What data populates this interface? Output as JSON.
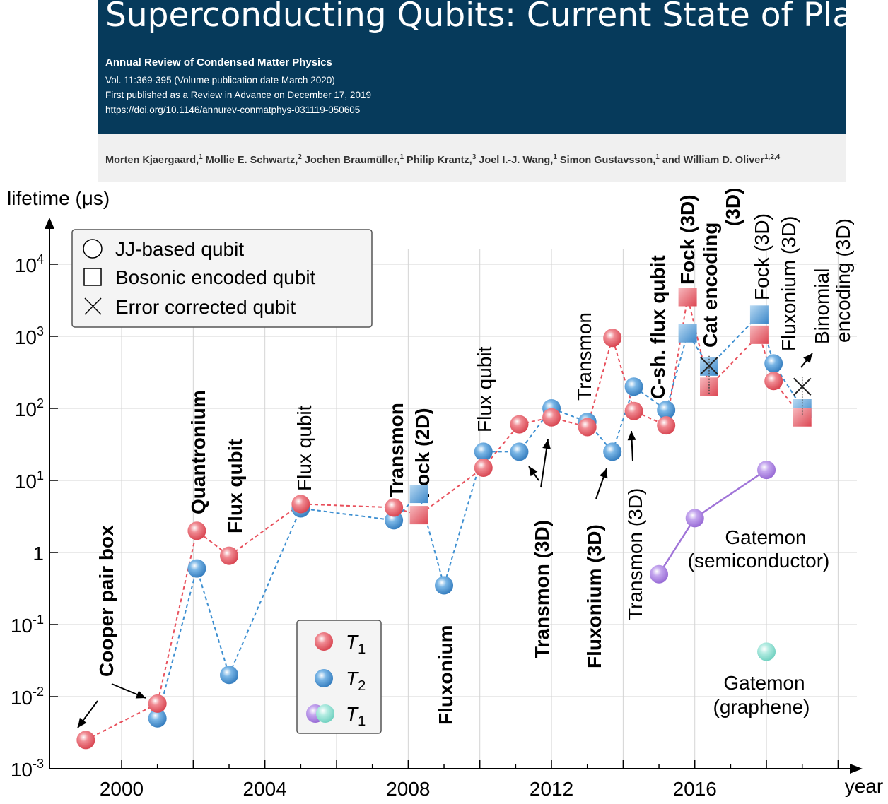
{
  "header": {
    "title": "Superconducting Qubits: Current State of Play",
    "journal": "Annual Review of Condensed Matter Physics",
    "volume": "Vol. 11:369-395 (Volume publication date March 2020)",
    "published": "First published as a Review in Advance on December 17, 2019",
    "doi": "https://doi.org/10.1146/annurev-conmatphys-031119-050605",
    "authors": [
      {
        "name": "Morten Kjaergaard,",
        "sup": "1"
      },
      {
        "name": "Mollie E. Schwartz,",
        "sup": "2"
      },
      {
        "name": "Jochen Braumüller,",
        "sup": "1"
      },
      {
        "name": "Philip Krantz,",
        "sup": "3"
      },
      {
        "name": "Joel I.-J. Wang,",
        "sup": "1"
      },
      {
        "name": "Simon Gustavsson,",
        "sup": "1"
      },
      {
        "name": "and William D. Oliver",
        "sup": "1,2,4"
      }
    ]
  },
  "colors": {
    "banner": "#063a5b",
    "t1": "#e8505c",
    "t2": "#3d8fd1",
    "gatemon_semiconductor": "#a074d8",
    "gatemon_graphene": "#7fd8c8"
  },
  "chart_data": {
    "type": "scatter",
    "xlabel": "year",
    "ylabel": "lifetime (μs)",
    "y_scale": "log",
    "xlim": [
      1998,
      2020.5
    ],
    "ylim": [
      0.001,
      100000
    ],
    "x_ticks": [
      "2000",
      "2004",
      "2008",
      "2012",
      "2016"
    ],
    "y_ticks": [
      {
        "exp": -3,
        "base": "10",
        "sup": "-3"
      },
      {
        "exp": -2,
        "base": "10",
        "sup": "-2"
      },
      {
        "exp": -1,
        "base": "10",
        "sup": "-1"
      },
      {
        "exp": 0,
        "base": "1",
        "sup": ""
      },
      {
        "exp": 1,
        "base": "10",
        "sup": "1"
      },
      {
        "exp": 2,
        "base": "10",
        "sup": "2"
      },
      {
        "exp": 3,
        "base": "10",
        "sup": "3"
      },
      {
        "exp": 4,
        "base": "10",
        "sup": "4"
      }
    ],
    "grid": true,
    "series": [
      {
        "name": "T1",
        "connected": true,
        "points": [
          {
            "x": 1999.0,
            "y": 0.0025,
            "m": "circle"
          },
          {
            "x": 2001.0,
            "y": 0.008,
            "m": "circle"
          },
          {
            "x": 2002.1,
            "y": 2.0,
            "m": "circle"
          },
          {
            "x": 2003.0,
            "y": 0.9,
            "m": "circle"
          },
          {
            "x": 2005.0,
            "y": 4.7,
            "m": "circle"
          },
          {
            "x": 2007.6,
            "y": 4.2,
            "m": "circle"
          },
          {
            "x": 2008.3,
            "y": 3.3,
            "m": "square"
          },
          {
            "x": 2010.1,
            "y": 15,
            "m": "circle"
          },
          {
            "x": 2011.1,
            "y": 60,
            "m": "circle"
          },
          {
            "x": 2012.0,
            "y": 75,
            "m": "circle"
          },
          {
            "x": 2013.0,
            "y": 55,
            "m": "circle"
          },
          {
            "x": 2013.7,
            "y": 950,
            "m": "circle"
          },
          {
            "x": 2014.3,
            "y": 92,
            "m": "circle"
          },
          {
            "x": 2015.2,
            "y": 58,
            "m": "circle"
          },
          {
            "x": 2015.8,
            "y": 3500,
            "m": "square"
          },
          {
            "x": 2016.4,
            "y": 200,
            "m": "square"
          },
          {
            "x": 2017.8,
            "y": 1050,
            "m": "square"
          },
          {
            "x": 2018.2,
            "y": 240,
            "m": "circle"
          },
          {
            "x": 2019.0,
            "y": 75,
            "m": "square"
          }
        ]
      },
      {
        "name": "T2",
        "connected": true,
        "points": [
          {
            "x": 2001.0,
            "y": 0.005,
            "m": "circle"
          },
          {
            "x": 2002.1,
            "y": 0.6,
            "m": "circle"
          },
          {
            "x": 2003.0,
            "y": 0.02,
            "m": "circle"
          },
          {
            "x": 2005.0,
            "y": 4.1,
            "m": "circle"
          },
          {
            "x": 2007.6,
            "y": 2.8,
            "m": "circle"
          },
          {
            "x": 2008.3,
            "y": 6.5,
            "m": "square"
          },
          {
            "x": 2009.0,
            "y": 0.35,
            "m": "circle"
          },
          {
            "x": 2010.1,
            "y": 25,
            "m": "circle"
          },
          {
            "x": 2011.1,
            "y": 25,
            "m": "circle"
          },
          {
            "x": 2012.0,
            "y": 100,
            "m": "circle"
          },
          {
            "x": 2013.0,
            "y": 65,
            "m": "circle"
          },
          {
            "x": 2013.7,
            "y": 25,
            "m": "circle"
          },
          {
            "x": 2014.3,
            "y": 200,
            "m": "circle"
          },
          {
            "x": 2015.2,
            "y": 95,
            "m": "circle"
          },
          {
            "x": 2015.8,
            "y": 1100,
            "m": "square"
          },
          {
            "x": 2016.4,
            "y": 380,
            "m": "square"
          },
          {
            "x": 2017.8,
            "y": 2000,
            "m": "square"
          },
          {
            "x": 2018.2,
            "y": 420,
            "m": "circle"
          },
          {
            "x": 2019.0,
            "y": 100,
            "m": "square"
          }
        ]
      },
      {
        "name": "T1",
        "connected": true,
        "points": [
          {
            "x": 2015.0,
            "y": 0.5,
            "m": "circle"
          },
          {
            "x": 2016.0,
            "y": 3.0,
            "m": "circle"
          },
          {
            "x": 2018.0,
            "y": 14,
            "m": "circle"
          }
        ]
      },
      {
        "name": "T1",
        "connected": false,
        "points": [
          {
            "x": 2018.0,
            "y": 0.042,
            "m": "circle"
          }
        ]
      }
    ],
    "error_corrected": [
      {
        "x": 2016.4,
        "y": 390
      },
      {
        "x": 2019.0,
        "y": 200
      }
    ],
    "marker_legend": {
      "placement": "top-left",
      "items": [
        "JJ-based qubit",
        "Bosonic encoded qubit",
        "Error corrected qubit"
      ]
    },
    "series_legend": {
      "placement": "bottom-center",
      "items": [
        "T1",
        "T2",
        "T1"
      ]
    },
    "annotations": [
      {
        "text": "Cooper pair box",
        "bold": true
      },
      {
        "text": "Quantronium",
        "bold": true
      },
      {
        "text": "Flux qubit",
        "bold": true
      },
      {
        "text": "Flux qubit",
        "bold": false
      },
      {
        "text": "Transmon",
        "bold": true
      },
      {
        "text": "Fock (2D)",
        "bold": true
      },
      {
        "text": "Fluxonium",
        "bold": true
      },
      {
        "text": "Flux qubit",
        "bold": false
      },
      {
        "text": "Transmon (3D)",
        "bold": true
      },
      {
        "text": "Transmon",
        "bold": false
      },
      {
        "text": "Fluxonium (3D)",
        "bold": true
      },
      {
        "text": "Transmon (3D)",
        "bold": false
      },
      {
        "text": "C-sh. flux qubit",
        "bold": true
      },
      {
        "text": "Fock (3D)",
        "bold": true
      },
      {
        "text": "Cat encoding",
        "bold": true
      },
      {
        "text": "(3D)",
        "bold": true
      },
      {
        "text": "Fock (3D)",
        "bold": false
      },
      {
        "text": "Fluxonium (3D)",
        "bold": false
      },
      {
        "text": "Binomial",
        "bold": false
      },
      {
        "text": "encoding (3D)",
        "bold": false
      },
      {
        "text": "Gatemon",
        "bold": false
      },
      {
        "text": "(semiconductor)",
        "bold": false
      },
      {
        "text": "Gatemon",
        "bold": false
      },
      {
        "text": "(graphene)",
        "bold": false
      }
    ]
  }
}
